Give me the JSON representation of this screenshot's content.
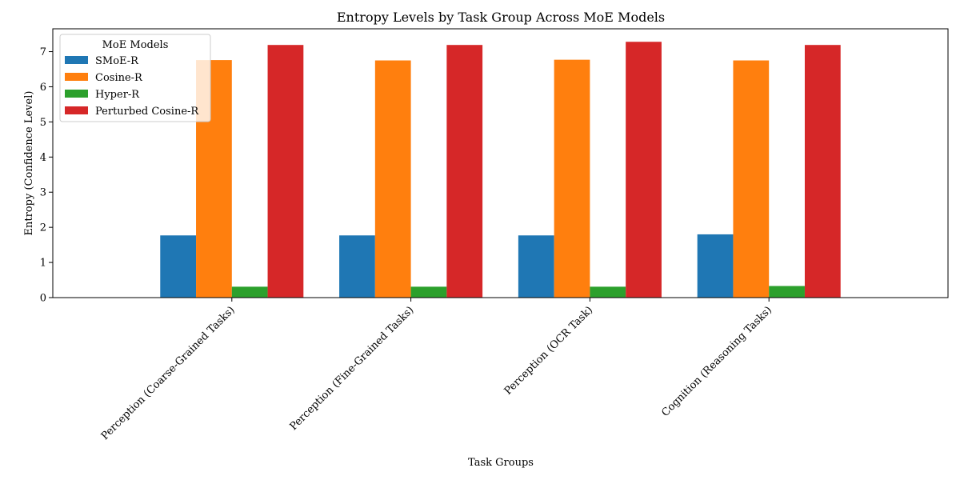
{
  "chart_data": {
    "type": "bar",
    "title": "Entropy Levels by Task Group Across MoE Models",
    "xlabel": "Task Groups",
    "ylabel": "Entropy (Confidence Level)",
    "categories": [
      "Perception (Coarse-Grained Tasks)",
      "Perception (Fine-Grained Tasks)",
      "Perception (OCR Task)",
      "Cognition (Reasoning Tasks)"
    ],
    "series": [
      {
        "name": "SMoE-R",
        "color": "#1f77b4",
        "values": [
          1.77,
          1.77,
          1.77,
          1.8
        ]
      },
      {
        "name": "Cosine-R",
        "color": "#ff7f0e",
        "values": [
          6.76,
          6.75,
          6.77,
          6.75
        ]
      },
      {
        "name": "Hyper-R",
        "color": "#2ca02c",
        "values": [
          0.31,
          0.31,
          0.31,
          0.33
        ]
      },
      {
        "name": "Perturbed Cosine-R",
        "color": "#d62728",
        "values": [
          7.19,
          7.19,
          7.28,
          7.19
        ]
      }
    ],
    "ylim": [
      0,
      7.65
    ],
    "yticks": [
      0,
      1,
      2,
      3,
      4,
      5,
      6,
      7
    ],
    "legend": {
      "title": "MoE Models",
      "placement": "top-left"
    },
    "grid": false
  }
}
